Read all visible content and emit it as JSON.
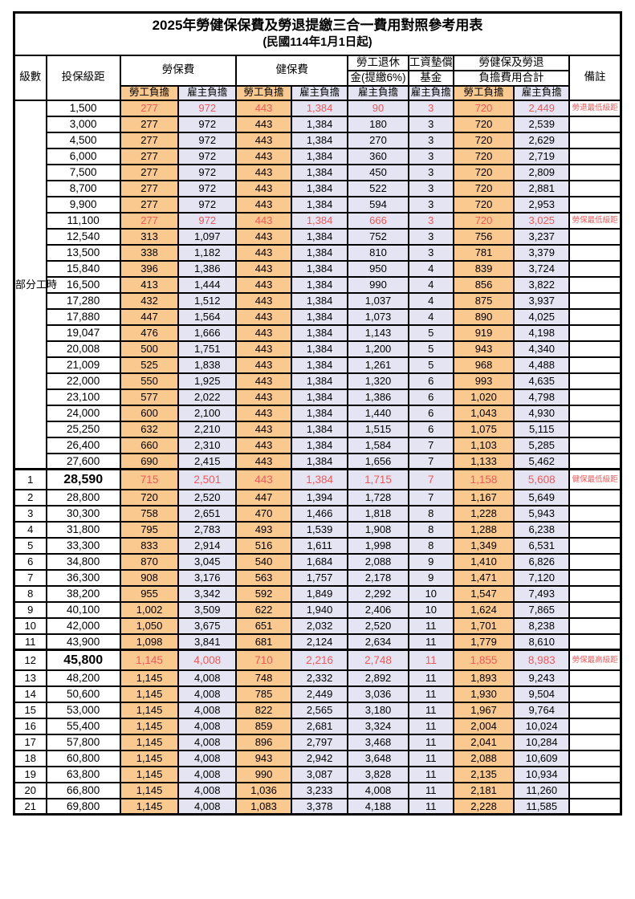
{
  "title": "2025年勞健保保費及勞退提繳三合一費用對照參考用表",
  "subtitle": "(民國114年1月1日起)",
  "colors": {
    "employee_bg": "#f9c98f",
    "employer_bg": "#e4e4f2",
    "highlight_red": "#ef5a5a"
  },
  "header": {
    "level": "級數",
    "bracket": "投保級距",
    "labor_ins": "勞保費",
    "health_ins": "健保費",
    "pension_line1": "勞工退休",
    "pension_line2": "金(提繳6%)",
    "wage_fund_line1": "工資墊償",
    "wage_fund_line2": "基金",
    "total_line1": "勞健保及勞退",
    "total_line2": "負擔費用合計",
    "remark": "備註",
    "employee_share": "勞工負擔",
    "employer_share": "雇主負擔"
  },
  "group": {
    "label": "部分工時",
    "span": 23
  },
  "value_col_types": [
    "emp",
    "er",
    "emp",
    "er",
    "er",
    "er",
    "emp",
    "er"
  ],
  "rows": [
    {
      "level": "",
      "bracket": "1,500",
      "v": [
        "277",
        "972",
        "443",
        "1,384",
        "90",
        "3",
        "720",
        "2,449"
      ],
      "red": true,
      "remark": "勞退最低級距"
    },
    {
      "level": "",
      "bracket": "3,000",
      "v": [
        "277",
        "972",
        "443",
        "1,384",
        "180",
        "3",
        "720",
        "2,539"
      ]
    },
    {
      "level": "",
      "bracket": "4,500",
      "v": [
        "277",
        "972",
        "443",
        "1,384",
        "270",
        "3",
        "720",
        "2,629"
      ]
    },
    {
      "level": "",
      "bracket": "6,000",
      "v": [
        "277",
        "972",
        "443",
        "1,384",
        "360",
        "3",
        "720",
        "2,719"
      ]
    },
    {
      "level": "",
      "bracket": "7,500",
      "v": [
        "277",
        "972",
        "443",
        "1,384",
        "450",
        "3",
        "720",
        "2,809"
      ]
    },
    {
      "level": "",
      "bracket": "8,700",
      "v": [
        "277",
        "972",
        "443",
        "1,384",
        "522",
        "3",
        "720",
        "2,881"
      ]
    },
    {
      "level": "",
      "bracket": "9,900",
      "v": [
        "277",
        "972",
        "443",
        "1,384",
        "594",
        "3",
        "720",
        "2,953"
      ]
    },
    {
      "level": "",
      "bracket": "11,100",
      "v": [
        "277",
        "972",
        "443",
        "1,384",
        "666",
        "3",
        "720",
        "3,025"
      ],
      "red": true,
      "remark": "勞保最低級距"
    },
    {
      "level": "",
      "bracket": "12,540",
      "v": [
        "313",
        "1,097",
        "443",
        "1,384",
        "752",
        "3",
        "756",
        "3,237"
      ]
    },
    {
      "level": "",
      "bracket": "13,500",
      "v": [
        "338",
        "1,182",
        "443",
        "1,384",
        "810",
        "3",
        "781",
        "3,379"
      ]
    },
    {
      "level": "",
      "bracket": "15,840",
      "v": [
        "396",
        "1,386",
        "443",
        "1,384",
        "950",
        "4",
        "839",
        "3,724"
      ]
    },
    {
      "level": "",
      "bracket": "16,500",
      "v": [
        "413",
        "1,444",
        "443",
        "1,384",
        "990",
        "4",
        "856",
        "3,822"
      ]
    },
    {
      "level": "",
      "bracket": "17,280",
      "v": [
        "432",
        "1,512",
        "443",
        "1,384",
        "1,037",
        "4",
        "875",
        "3,937"
      ]
    },
    {
      "level": "",
      "bracket": "17,880",
      "v": [
        "447",
        "1,564",
        "443",
        "1,384",
        "1,073",
        "4",
        "890",
        "4,025"
      ]
    },
    {
      "level": "",
      "bracket": "19,047",
      "v": [
        "476",
        "1,666",
        "443",
        "1,384",
        "1,143",
        "5",
        "919",
        "4,198"
      ]
    },
    {
      "level": "",
      "bracket": "20,008",
      "v": [
        "500",
        "1,751",
        "443",
        "1,384",
        "1,200",
        "5",
        "943",
        "4,340"
      ]
    },
    {
      "level": "",
      "bracket": "21,009",
      "v": [
        "525",
        "1,838",
        "443",
        "1,384",
        "1,261",
        "5",
        "968",
        "4,488"
      ]
    },
    {
      "level": "",
      "bracket": "22,000",
      "v": [
        "550",
        "1,925",
        "443",
        "1,384",
        "1,320",
        "6",
        "993",
        "4,635"
      ]
    },
    {
      "level": "",
      "bracket": "23,100",
      "v": [
        "577",
        "2,022",
        "443",
        "1,384",
        "1,386",
        "6",
        "1,020",
        "4,798"
      ]
    },
    {
      "level": "",
      "bracket": "24,000",
      "v": [
        "600",
        "2,100",
        "443",
        "1,384",
        "1,440",
        "6",
        "1,043",
        "4,930"
      ]
    },
    {
      "level": "",
      "bracket": "25,250",
      "v": [
        "632",
        "2,210",
        "443",
        "1,384",
        "1,515",
        "6",
        "1,075",
        "5,115"
      ]
    },
    {
      "level": "",
      "bracket": "26,400",
      "v": [
        "660",
        "2,310",
        "443",
        "1,384",
        "1,584",
        "7",
        "1,103",
        "5,285"
      ]
    },
    {
      "level": "",
      "bracket": "27,600",
      "v": [
        "690",
        "2,415",
        "443",
        "1,384",
        "1,656",
        "7",
        "1,133",
        "5,462"
      ]
    },
    {
      "level": "1",
      "bracket": "28,590",
      "v": [
        "715",
        "2,501",
        "443",
        "1,384",
        "1,715",
        "7",
        "1,158",
        "5,608"
      ],
      "red": true,
      "special": true,
      "thick": true,
      "remark": "健保最低級距"
    },
    {
      "level": "2",
      "bracket": "28,800",
      "v": [
        "720",
        "2,520",
        "447",
        "1,394",
        "1,728",
        "7",
        "1,167",
        "5,649"
      ]
    },
    {
      "level": "3",
      "bracket": "30,300",
      "v": [
        "758",
        "2,651",
        "470",
        "1,466",
        "1,818",
        "8",
        "1,228",
        "5,943"
      ]
    },
    {
      "level": "4",
      "bracket": "31,800",
      "v": [
        "795",
        "2,783",
        "493",
        "1,539",
        "1,908",
        "8",
        "1,288",
        "6,238"
      ]
    },
    {
      "level": "5",
      "bracket": "33,300",
      "v": [
        "833",
        "2,914",
        "516",
        "1,611",
        "1,998",
        "8",
        "1,349",
        "6,531"
      ]
    },
    {
      "level": "6",
      "bracket": "34,800",
      "v": [
        "870",
        "3,045",
        "540",
        "1,684",
        "2,088",
        "9",
        "1,410",
        "6,826"
      ]
    },
    {
      "level": "7",
      "bracket": "36,300",
      "v": [
        "908",
        "3,176",
        "563",
        "1,757",
        "2,178",
        "9",
        "1,471",
        "7,120"
      ]
    },
    {
      "level": "8",
      "bracket": "38,200",
      "v": [
        "955",
        "3,342",
        "592",
        "1,849",
        "2,292",
        "10",
        "1,547",
        "7,493"
      ]
    },
    {
      "level": "9",
      "bracket": "40,100",
      "v": [
        "1,002",
        "3,509",
        "622",
        "1,940",
        "2,406",
        "10",
        "1,624",
        "7,865"
      ]
    },
    {
      "level": "10",
      "bracket": "42,000",
      "v": [
        "1,050",
        "3,675",
        "651",
        "2,032",
        "2,520",
        "11",
        "1,701",
        "8,238"
      ]
    },
    {
      "level": "11",
      "bracket": "43,900",
      "v": [
        "1,098",
        "3,841",
        "681",
        "2,124",
        "2,634",
        "11",
        "1,779",
        "8,610"
      ]
    },
    {
      "level": "12",
      "bracket": "45,800",
      "v": [
        "1,145",
        "4,008",
        "710",
        "2,216",
        "2,748",
        "11",
        "1,855",
        "8,983"
      ],
      "red": true,
      "special": true,
      "thick": true,
      "remark": "勞保最高級距"
    },
    {
      "level": "13",
      "bracket": "48,200",
      "v": [
        "1,145",
        "4,008",
        "748",
        "2,332",
        "2,892",
        "11",
        "1,893",
        "9,243"
      ]
    },
    {
      "level": "14",
      "bracket": "50,600",
      "v": [
        "1,145",
        "4,008",
        "785",
        "2,449",
        "3,036",
        "11",
        "1,930",
        "9,504"
      ]
    },
    {
      "level": "15",
      "bracket": "53,000",
      "v": [
        "1,145",
        "4,008",
        "822",
        "2,565",
        "3,180",
        "11",
        "1,967",
        "9,764"
      ]
    },
    {
      "level": "16",
      "bracket": "55,400",
      "v": [
        "1,145",
        "4,008",
        "859",
        "2,681",
        "3,324",
        "11",
        "2,004",
        "10,024"
      ]
    },
    {
      "level": "17",
      "bracket": "57,800",
      "v": [
        "1,145",
        "4,008",
        "896",
        "2,797",
        "3,468",
        "11",
        "2,041",
        "10,284"
      ]
    },
    {
      "level": "18",
      "bracket": "60,800",
      "v": [
        "1,145",
        "4,008",
        "943",
        "2,942",
        "3,648",
        "11",
        "2,088",
        "10,609"
      ]
    },
    {
      "level": "19",
      "bracket": "63,800",
      "v": [
        "1,145",
        "4,008",
        "990",
        "3,087",
        "3,828",
        "11",
        "2,135",
        "10,934"
      ]
    },
    {
      "level": "20",
      "bracket": "66,800",
      "v": [
        "1,145",
        "4,008",
        "1,036",
        "3,233",
        "4,008",
        "11",
        "2,181",
        "11,260"
      ]
    },
    {
      "level": "21",
      "bracket": "69,800",
      "v": [
        "1,145",
        "4,008",
        "1,083",
        "3,378",
        "4,188",
        "11",
        "2,228",
        "11,585"
      ]
    }
  ]
}
